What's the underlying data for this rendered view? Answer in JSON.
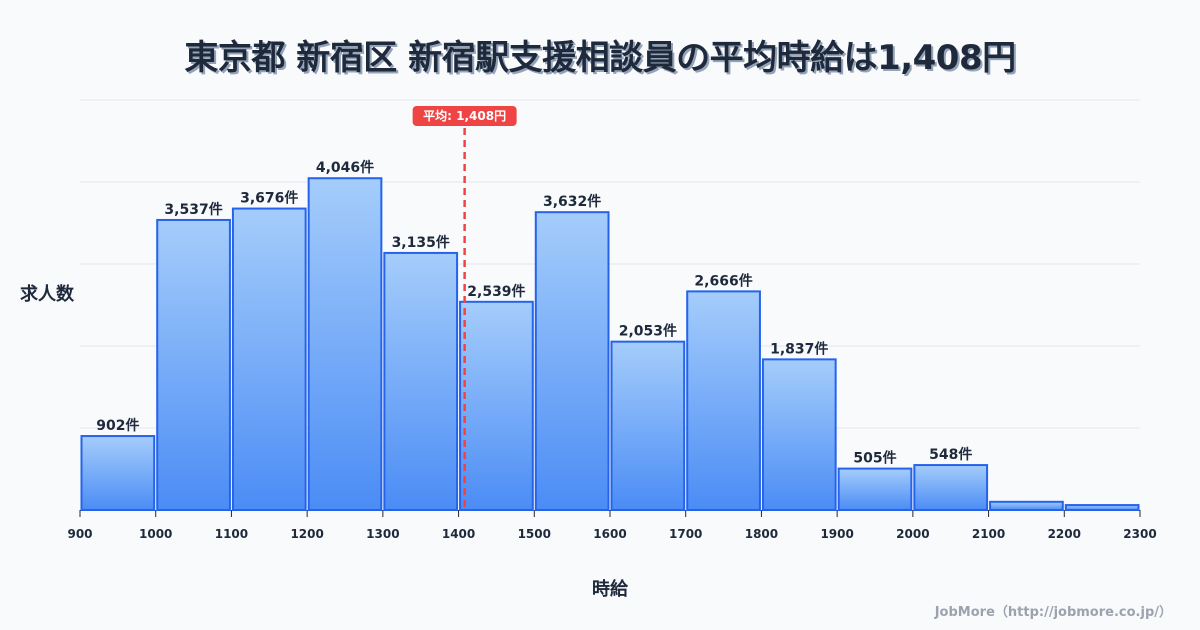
{
  "title": "東京都 新宿区 新宿駅支援相談員の平均時給は1,408円",
  "ylabel": "求人数",
  "xlabel": "時給",
  "credit": "JobMore（http://jobmore.co.jp/）",
  "average": {
    "label": "平均: 1,408円",
    "value": 1408
  },
  "colors": {
    "bar_top": "#a5cdfb",
    "bar_bottom": "#4b8cf5",
    "bar_stroke": "#2563eb",
    "average_line": "#ef4444",
    "grid": "#e2e8f0"
  },
  "chart_data": {
    "type": "bar",
    "title": "東京都 新宿区 新宿駅支援相談員の平均時給は1,408円",
    "xlabel": "時給",
    "ylabel": "求人数",
    "bins": [
      [
        900,
        1000
      ],
      [
        1000,
        1100
      ],
      [
        1100,
        1200
      ],
      [
        1200,
        1300
      ],
      [
        1300,
        1400
      ],
      [
        1400,
        1500
      ],
      [
        1500,
        1600
      ],
      [
        1600,
        1700
      ],
      [
        1700,
        1800
      ],
      [
        1800,
        1900
      ],
      [
        1900,
        2000
      ],
      [
        2000,
        2100
      ],
      [
        2100,
        2200
      ],
      [
        2200,
        2300
      ]
    ],
    "categories": [
      "900-1000",
      "1000-1100",
      "1100-1200",
      "1200-1300",
      "1300-1400",
      "1400-1500",
      "1500-1600",
      "1600-1700",
      "1700-1800",
      "1800-1900",
      "1900-2000",
      "2000-2100",
      "2100-2200",
      "2200-2300"
    ],
    "values": [
      902,
      3537,
      3676,
      4046,
      3135,
      2539,
      3632,
      2053,
      2666,
      1837,
      505,
      548,
      100,
      60
    ],
    "value_labels": [
      "902件",
      "3,537件",
      "3,676件",
      "4,046件",
      "3,135件",
      "2,539件",
      "3,632件",
      "2,053件",
      "2,666件",
      "1,837件",
      "505件",
      "548件",
      "",
      ""
    ],
    "x_ticks": [
      "900",
      "1000",
      "1100",
      "1200",
      "1300",
      "1400",
      "1500",
      "1600",
      "1700",
      "1800",
      "1900",
      "2000",
      "2100",
      "2200",
      "2300"
    ],
    "xlim": [
      900,
      2300
    ],
    "ylim": [
      0,
      5000
    ],
    "grid": true,
    "annotations": [
      {
        "type": "vline",
        "x": 1408,
        "label": "平均: 1,408円"
      }
    ]
  }
}
